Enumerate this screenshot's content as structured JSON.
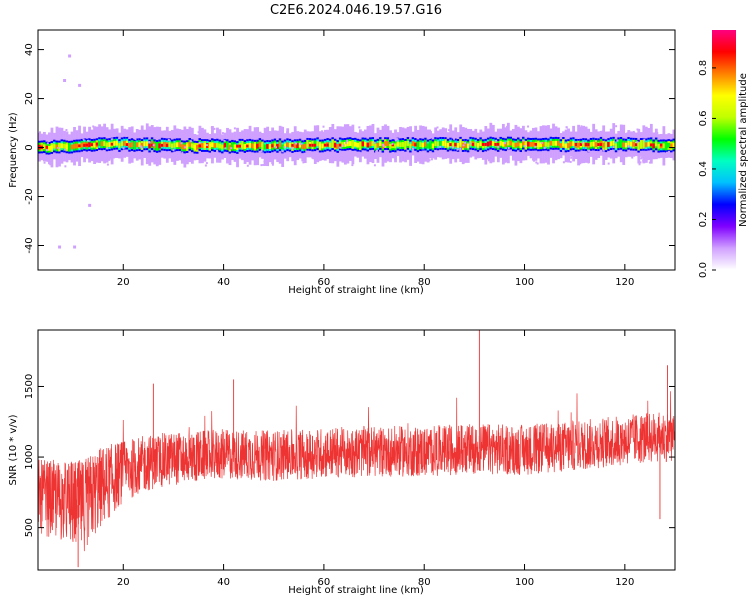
{
  "figure": {
    "title": "C2E6.2024.046.19.57.G16"
  },
  "chart_data": [
    {
      "type": "heatmap",
      "xlabel": "Height of straight line (km)",
      "ylabel": "Frequency (Hz)",
      "xlim": [
        3,
        130
      ],
      "ylim": [
        -50,
        48
      ],
      "xticks": [
        "20",
        "40",
        "60",
        "80",
        "100",
        "120"
      ],
      "yticks": [
        "-40",
        "-20",
        "0",
        "20",
        "40"
      ],
      "grid": false,
      "colorbar": {
        "label": "Normalized spectral amplitude",
        "range": [
          0,
          0.95
        ],
        "ticks": [
          "0.0",
          "0.2",
          "0.4",
          "0.6",
          "0.8"
        ],
        "colormap": [
          "#ffffff",
          "#d0a0ff",
          "#8000ff",
          "#0000ff",
          "#00c0ff",
          "#00ffc0",
          "#00ff00",
          "#c0ff00",
          "#ffff00",
          "#ff8000",
          "#ff0000",
          "#ff0080"
        ]
      },
      "band": {
        "center_freq_hz": [
          [
            3,
            0
          ],
          [
            10,
            0.5
          ],
          [
            15,
            1.5
          ],
          [
            25,
            1
          ],
          [
            40,
            0.5
          ],
          [
            60,
            1
          ],
          [
            80,
            1.2
          ],
          [
            100,
            1.3
          ],
          [
            120,
            1.2
          ],
          [
            130,
            1
          ]
        ],
        "core_width_hz": 2,
        "halo_width_hz": 6,
        "peak_amplitude": 0.95
      },
      "outliers": [
        {
          "x": 9,
          "y": 38
        },
        {
          "x": 11,
          "y": 26
        },
        {
          "x": 13,
          "y": -23
        },
        {
          "x": 10,
          "y": -40
        },
        {
          "x": 7,
          "y": -40
        },
        {
          "x": 8,
          "y": 28
        }
      ]
    },
    {
      "type": "line",
      "xlabel": "Height of straight line (km)",
      "ylabel": "SNR (10 * v/v)",
      "xlim": [
        3,
        130
      ],
      "ylim": [
        200,
        1900
      ],
      "xticks": [
        "20",
        "40",
        "60",
        "80",
        "100",
        "120"
      ],
      "yticks": [
        "500",
        "1000",
        "1500"
      ],
      "grid": false,
      "series": [
        {
          "color": "#ee3333",
          "envelope_x": [
            3,
            6,
            9,
            12,
            15,
            20,
            25,
            30,
            40,
            50,
            60,
            70,
            80,
            90,
            100,
            110,
            120,
            125,
            130
          ],
          "envelope_mean": [
            720,
            700,
            680,
            650,
            770,
            900,
            960,
            990,
            1020,
            1010,
            1030,
            1040,
            1040,
            1060,
            1050,
            1080,
            1120,
            1140,
            1150
          ],
          "envelope_spread": [
            260,
            280,
            300,
            330,
            300,
            220,
            200,
            190,
            180,
            180,
            180,
            180,
            180,
            180,
            180,
            180,
            180,
            180,
            180
          ],
          "spikes": [
            {
              "x": 91,
              "y": 1900
            },
            {
              "x": 128.5,
              "y": 1650
            },
            {
              "x": 26,
              "y": 1520
            },
            {
              "x": 42,
              "y": 1550
            },
            {
              "x": 11,
              "y": 220
            },
            {
              "x": 127,
              "y": 560
            }
          ]
        }
      ]
    }
  ]
}
